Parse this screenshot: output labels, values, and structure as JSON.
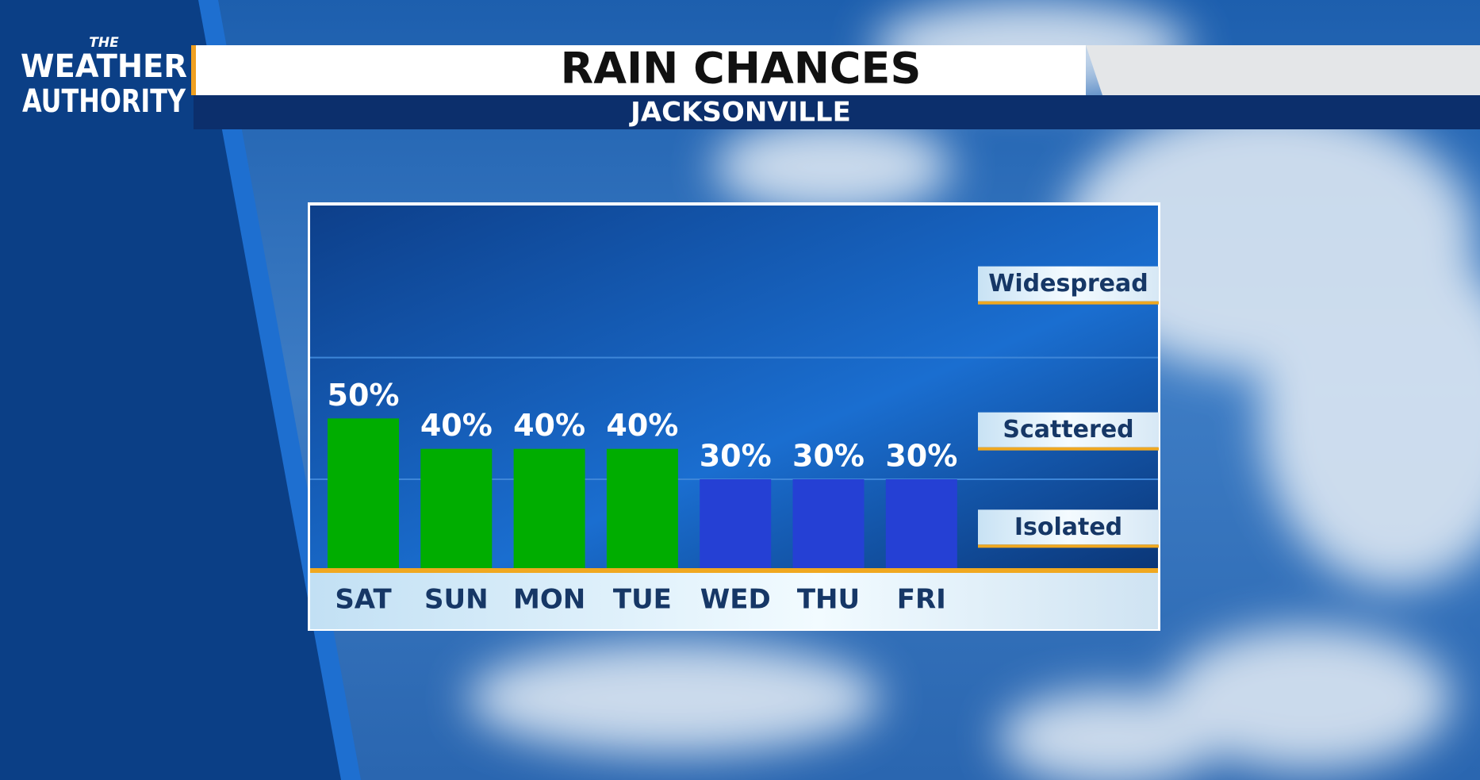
{
  "branding": {
    "lines": [
      "THE",
      "WEATHER",
      "AUTHORITY"
    ]
  },
  "chart_data": {
    "type": "bar",
    "title": "RAIN CHANCES",
    "subtitle": "JACKSONVILLE",
    "categories": [
      "SAT",
      "SUN",
      "MON",
      "TUE",
      "WED",
      "THU",
      "FRI"
    ],
    "values": [
      50,
      40,
      40,
      40,
      30,
      30,
      30
    ],
    "value_labels": [
      "50%",
      "40%",
      "40%",
      "40%",
      "30%",
      "30%",
      "30%"
    ],
    "colors": [
      "#00ad00",
      "#00ad00",
      "#00ad00",
      "#00ad00",
      "#2540d4",
      "#2540d4",
      "#2540d4"
    ],
    "ylim": [
      0,
      120
    ],
    "yticks": [
      {
        "value": 14,
        "label": "Isolated"
      },
      {
        "value": 46,
        "label": "Scattered"
      },
      {
        "value": 94,
        "label": "Widespread"
      }
    ]
  }
}
